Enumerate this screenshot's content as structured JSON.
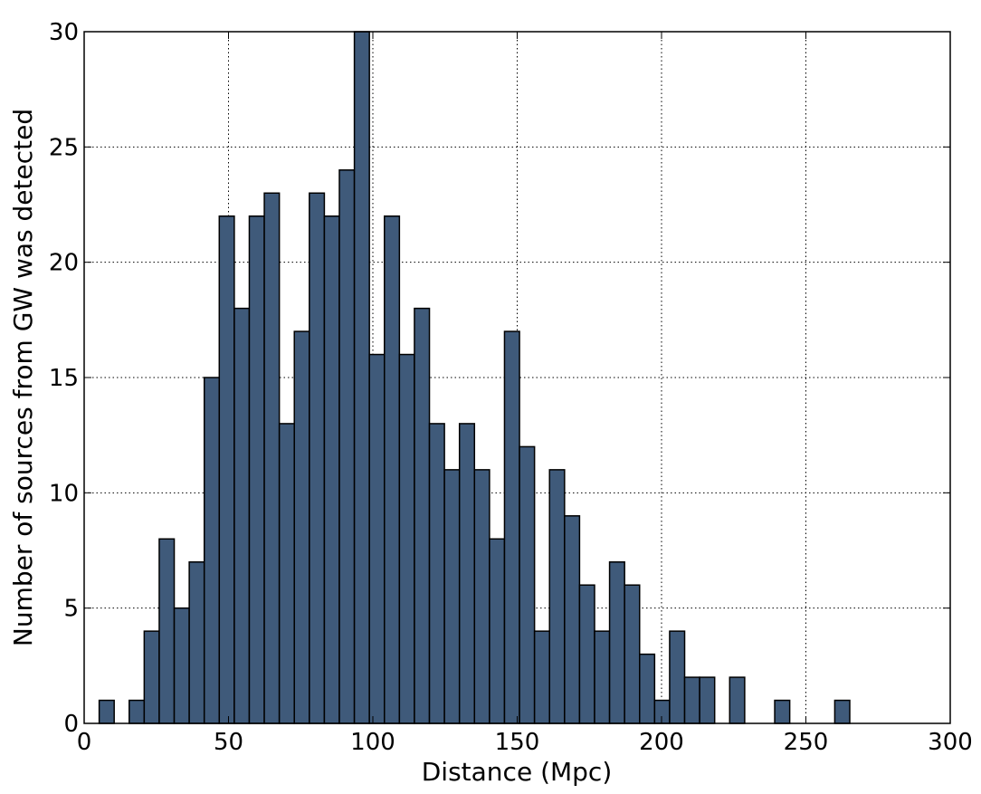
{
  "chart_data": {
    "type": "bar",
    "xlabel": "Distance (Mpc)",
    "ylabel": "Number of sources from GW was detected",
    "xlim": [
      0,
      300
    ],
    "ylim": [
      0,
      30
    ],
    "xticks": [
      0,
      50,
      100,
      150,
      200,
      250,
      300
    ],
    "yticks": [
      0,
      5,
      10,
      15,
      20,
      25,
      30
    ],
    "grid": true,
    "bar_color": "#3f5a7a",
    "bin_start": 5.2,
    "bin_width": 5.2,
    "values": [
      1,
      0,
      1,
      4,
      8,
      5,
      7,
      15,
      22,
      18,
      22,
      23,
      13,
      17,
      23,
      22,
      24,
      30,
      16,
      22,
      16,
      18,
      13,
      11,
      13,
      11,
      8,
      17,
      12,
      4,
      11,
      9,
      6,
      4,
      7,
      6,
      3,
      1,
      4,
      2,
      2,
      0,
      2,
      0,
      0,
      1,
      0,
      0,
      0,
      1
    ]
  }
}
